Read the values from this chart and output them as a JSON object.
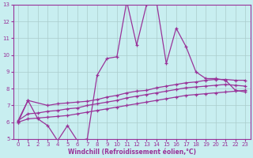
{
  "xlabel": "Windchill (Refroidissement éolien,°C)",
  "bg_color": "#c8eef0",
  "line_color": "#993399",
  "grid_color": "#aacccc",
  "xlim": [
    -0.5,
    23.5
  ],
  "ylim": [
    5,
    13
  ],
  "xticks": [
    0,
    1,
    2,
    3,
    4,
    5,
    6,
    7,
    8,
    9,
    10,
    11,
    12,
    13,
    14,
    15,
    16,
    17,
    18,
    19,
    20,
    21,
    22,
    23
  ],
  "yticks": [
    5,
    6,
    7,
    8,
    9,
    10,
    11,
    12,
    13
  ],
  "series1_x": [
    0,
    1,
    2,
    3,
    4,
    5,
    6,
    7,
    8,
    9,
    10,
    11,
    12,
    13,
    14,
    15,
    16,
    17,
    18,
    19,
    20,
    21,
    22,
    23
  ],
  "series1_y": [
    6.0,
    7.3,
    6.2,
    5.8,
    4.9,
    5.8,
    4.9,
    5.0,
    8.8,
    9.8,
    9.9,
    13.2,
    10.6,
    13.0,
    13.2,
    9.5,
    11.6,
    10.5,
    9.0,
    8.6,
    8.6,
    8.5,
    7.9,
    7.8
  ],
  "series2_x": [
    0,
    1,
    3,
    4,
    5,
    6,
    7,
    8,
    9,
    10,
    11,
    12,
    13,
    14,
    15,
    16,
    17,
    18,
    19,
    20,
    21,
    22,
    23
  ],
  "series2_y": [
    6.1,
    7.3,
    7.0,
    7.1,
    7.15,
    7.2,
    7.25,
    7.35,
    7.5,
    7.6,
    7.75,
    7.85,
    7.9,
    8.05,
    8.15,
    8.25,
    8.35,
    8.4,
    8.5,
    8.55,
    8.55,
    8.5,
    8.5
  ],
  "series3_x": [
    0,
    1,
    2,
    3,
    4,
    5,
    6,
    7,
    8,
    9,
    10,
    11,
    12,
    13,
    14,
    15,
    16,
    17,
    18,
    19,
    20,
    21,
    22,
    23
  ],
  "series3_y": [
    6.1,
    6.5,
    6.55,
    6.65,
    6.7,
    6.8,
    6.85,
    7.0,
    7.1,
    7.2,
    7.3,
    7.45,
    7.55,
    7.65,
    7.75,
    7.85,
    7.95,
    8.05,
    8.1,
    8.15,
    8.2,
    8.25,
    8.2,
    8.15
  ],
  "series4_x": [
    0,
    1,
    2,
    3,
    4,
    5,
    6,
    7,
    8,
    9,
    10,
    11,
    12,
    13,
    14,
    15,
    16,
    17,
    18,
    19,
    20,
    21,
    22,
    23
  ],
  "series4_y": [
    6.0,
    6.2,
    6.25,
    6.3,
    6.35,
    6.4,
    6.5,
    6.6,
    6.7,
    6.8,
    6.9,
    7.0,
    7.1,
    7.2,
    7.3,
    7.4,
    7.5,
    7.6,
    7.65,
    7.7,
    7.75,
    7.8,
    7.85,
    7.9
  ]
}
